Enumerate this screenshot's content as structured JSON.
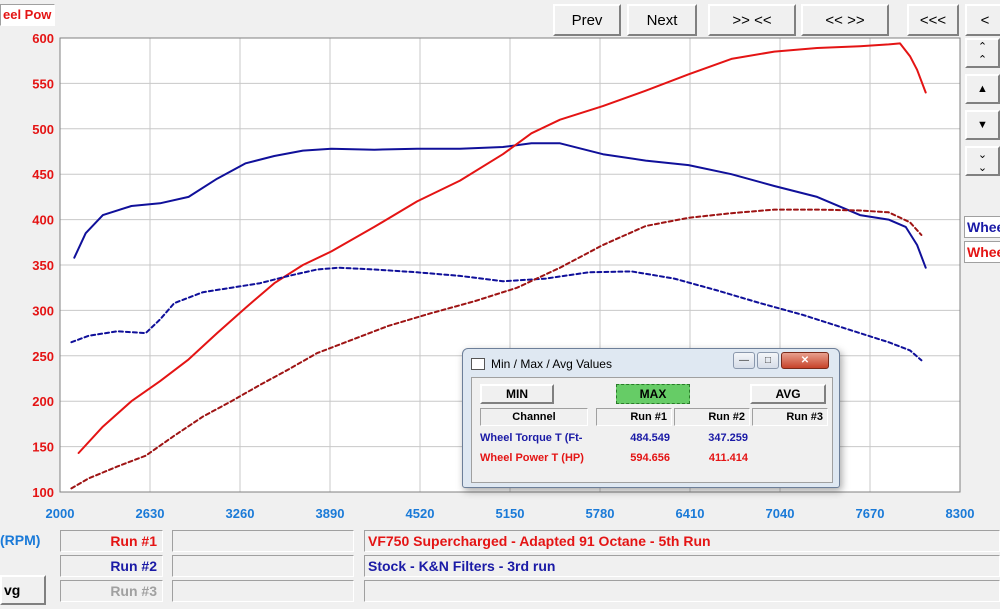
{
  "toolbar": {
    "title_field": "eel Pow",
    "prev": "Prev",
    "next": "Next",
    "zoom_in": ">> <<",
    "zoom_out": "<< >>",
    "first": "<<<",
    "back": "<"
  },
  "side": {
    "legend": [
      "Whee",
      "Whee"
    ]
  },
  "chart_data": {
    "type": "line",
    "xlabel": "(RPM)",
    "x_ticks": [
      2000,
      2630,
      3260,
      3890,
      4520,
      5150,
      5780,
      6410,
      7040,
      7670,
      8300
    ],
    "y_ticks": [
      100,
      150,
      200,
      250,
      300,
      350,
      400,
      450,
      500,
      550,
      600
    ],
    "xlim": [
      2000,
      8300
    ],
    "ylim": [
      100,
      600
    ],
    "grid": true,
    "series": [
      {
        "name": "Wheel Torque T (Ft-",
        "run": "Run #1",
        "color": "#10109a",
        "dashed": false,
        "points": [
          [
            2100,
            358
          ],
          [
            2180,
            385
          ],
          [
            2300,
            405
          ],
          [
            2500,
            415
          ],
          [
            2700,
            418
          ],
          [
            2900,
            425
          ],
          [
            3100,
            445
          ],
          [
            3300,
            462
          ],
          [
            3500,
            470
          ],
          [
            3700,
            476
          ],
          [
            3900,
            478
          ],
          [
            4200,
            477
          ],
          [
            4500,
            478
          ],
          [
            4800,
            478
          ],
          [
            5100,
            480
          ],
          [
            5300,
            484
          ],
          [
            5500,
            484
          ],
          [
            5800,
            472
          ],
          [
            6100,
            465
          ],
          [
            6400,
            460
          ],
          [
            6700,
            450
          ],
          [
            7000,
            437
          ],
          [
            7300,
            425
          ],
          [
            7600,
            405
          ],
          [
            7800,
            400
          ],
          [
            7920,
            392
          ],
          [
            8000,
            372
          ],
          [
            8060,
            347
          ]
        ]
      },
      {
        "name": "Wheel Power T (HP)",
        "run": "Run #1",
        "color": "#e41414",
        "dashed": false,
        "points": [
          [
            2130,
            143
          ],
          [
            2300,
            172
          ],
          [
            2500,
            200
          ],
          [
            2700,
            222
          ],
          [
            2900,
            246
          ],
          [
            3100,
            275
          ],
          [
            3300,
            303
          ],
          [
            3500,
            330
          ],
          [
            3700,
            350
          ],
          [
            3900,
            365
          ],
          [
            4200,
            392
          ],
          [
            4500,
            420
          ],
          [
            4800,
            443
          ],
          [
            5100,
            472
          ],
          [
            5300,
            495
          ],
          [
            5500,
            510
          ],
          [
            5800,
            525
          ],
          [
            6100,
            542
          ],
          [
            6400,
            560
          ],
          [
            6700,
            577
          ],
          [
            7000,
            585
          ],
          [
            7300,
            589
          ],
          [
            7600,
            591
          ],
          [
            7800,
            593
          ],
          [
            7880,
            594
          ],
          [
            7950,
            580
          ],
          [
            8000,
            565
          ],
          [
            8060,
            540
          ]
        ]
      },
      {
        "name": "Wheel Torque T (Ft-",
        "run": "Run #2",
        "color": "#10109a",
        "dashed": true,
        "points": [
          [
            2080,
            265
          ],
          [
            2200,
            272
          ],
          [
            2400,
            277
          ],
          [
            2600,
            275
          ],
          [
            2700,
            290
          ],
          [
            2800,
            308
          ],
          [
            3000,
            320
          ],
          [
            3200,
            325
          ],
          [
            3400,
            330
          ],
          [
            3600,
            338
          ],
          [
            3800,
            345
          ],
          [
            3950,
            347
          ],
          [
            4200,
            345
          ],
          [
            4500,
            342
          ],
          [
            4800,
            338
          ],
          [
            5100,
            332
          ],
          [
            5400,
            335
          ],
          [
            5700,
            342
          ],
          [
            6000,
            343
          ],
          [
            6300,
            335
          ],
          [
            6600,
            322
          ],
          [
            6900,
            308
          ],
          [
            7200,
            295
          ],
          [
            7500,
            280
          ],
          [
            7800,
            265
          ],
          [
            7950,
            256
          ],
          [
            8030,
            245
          ]
        ]
      },
      {
        "name": "Wheel Power T (HP)",
        "run": "Run #2",
        "color": "#9e1414",
        "dashed": true,
        "points": [
          [
            2080,
            104
          ],
          [
            2200,
            115
          ],
          [
            2400,
            128
          ],
          [
            2600,
            140
          ],
          [
            2800,
            162
          ],
          [
            3000,
            183
          ],
          [
            3200,
            200
          ],
          [
            3400,
            218
          ],
          [
            3600,
            235
          ],
          [
            3800,
            253
          ],
          [
            4000,
            265
          ],
          [
            4300,
            283
          ],
          [
            4600,
            297
          ],
          [
            4900,
            310
          ],
          [
            5200,
            325
          ],
          [
            5500,
            347
          ],
          [
            5800,
            372
          ],
          [
            6100,
            393
          ],
          [
            6400,
            402
          ],
          [
            6700,
            407
          ],
          [
            7000,
            411
          ],
          [
            7300,
            411
          ],
          [
            7600,
            410
          ],
          [
            7800,
            408
          ],
          [
            7950,
            397
          ],
          [
            8030,
            383
          ]
        ]
      }
    ]
  },
  "dialog": {
    "title": "Min / Max / Avg Values",
    "buttons": [
      "MIN",
      "MAX",
      "AVG"
    ],
    "headers": [
      "Channel",
      "Run #1",
      "Run #2",
      "Run #3"
    ],
    "rows": [
      {
        "channel": "Wheel Torque T (Ft-",
        "run1": "484.549",
        "run2": "347.259",
        "run3": "",
        "color": "#1a1aa6"
      },
      {
        "channel": "Wheel Power T (HP)",
        "run1": "594.656",
        "run2": "411.414",
        "run3": "",
        "color": "#e41414"
      }
    ]
  },
  "bottom": {
    "rpm_label": "(RPM)",
    "run1_label": "Run #1",
    "run2_label": "Run #2",
    "run3_label": "Run #3",
    "run1_desc": "VF750 Supercharged - Adapted 91 Octane - 5th Run",
    "run2_desc": "Stock - K&N Filters - 3rd run",
    "avg_button": "vg"
  },
  "colors": {
    "red": "#e41414",
    "blue": "#1a1aa6",
    "tick_blue": "#1a7ad8",
    "max_green": "#66cc66"
  }
}
